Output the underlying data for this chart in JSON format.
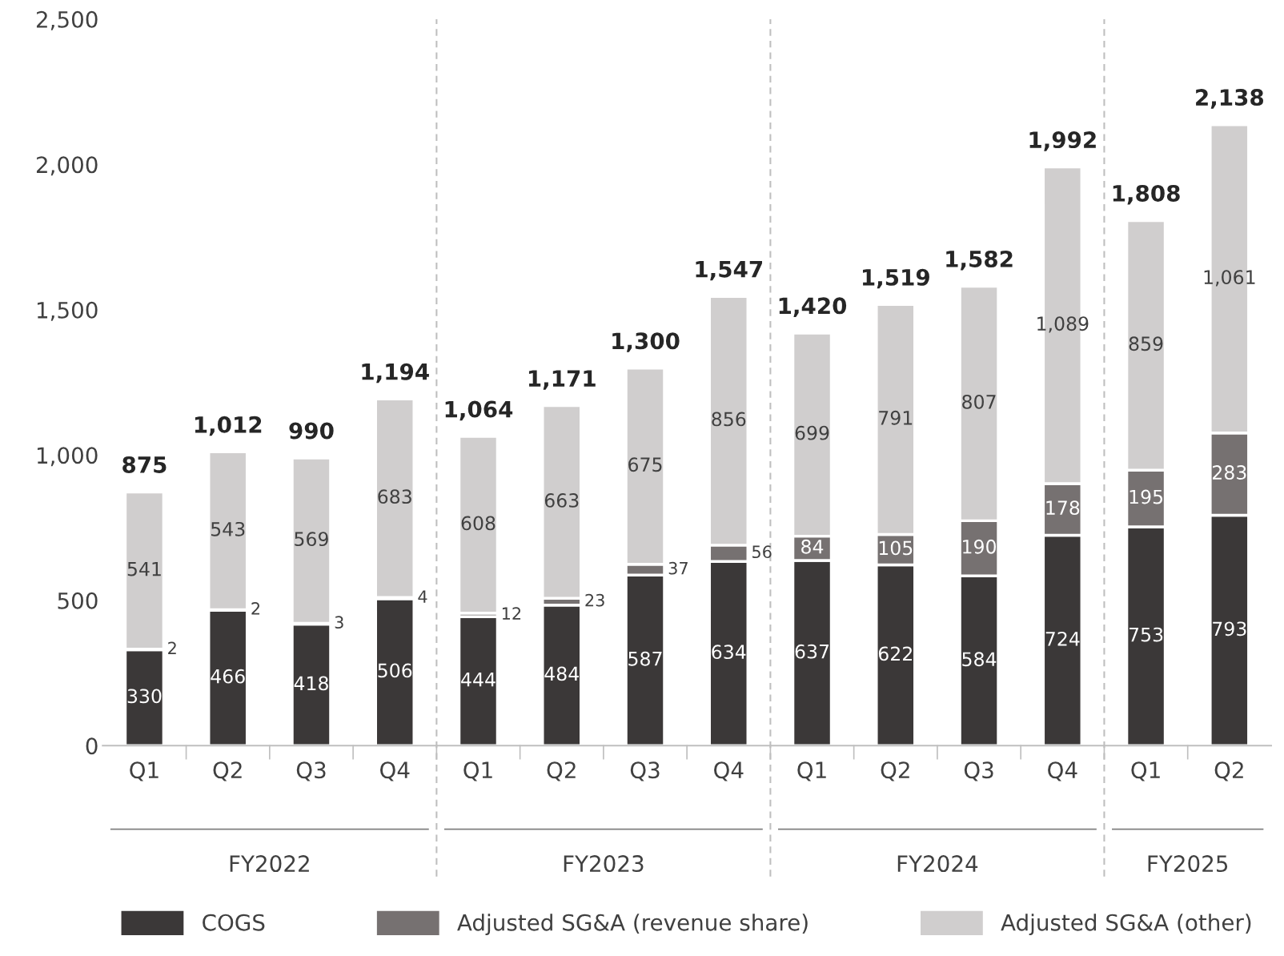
{
  "chart_data": {
    "type": "bar",
    "stacked": true,
    "categories": [
      "Q1",
      "Q2",
      "Q3",
      "Q4",
      "Q1",
      "Q2",
      "Q3",
      "Q4",
      "Q1",
      "Q2",
      "Q3",
      "Q4",
      "Q1",
      "Q2"
    ],
    "series": [
      {
        "name": "COGS",
        "color": "#3b3838",
        "values": [
          330,
          466,
          418,
          506,
          444,
          484,
          587,
          634,
          637,
          622,
          584,
          724,
          753,
          793
        ],
        "value_labels": [
          "330",
          "466",
          "418",
          "506",
          "444",
          "484",
          "587",
          "634",
          "637",
          "622",
          "584",
          "724",
          "753",
          "793"
        ]
      },
      {
        "name": "Adjusted SG&A (revenue share)",
        "color": "#767171",
        "values": [
          2,
          2,
          3,
          4,
          12,
          23,
          37,
          56,
          84,
          105,
          190,
          178,
          195,
          283
        ],
        "value_labels": [
          "2",
          "2",
          "3",
          "4",
          "12",
          "23",
          "37",
          "56",
          "84",
          "105",
          "190",
          "178",
          "195",
          "283"
        ]
      },
      {
        "name": "Adjusted SG&A (other)",
        "color": "#d0cece",
        "values": [
          541,
          543,
          569,
          683,
          608,
          663,
          675,
          856,
          699,
          791,
          807,
          1089,
          859,
          1061
        ],
        "value_labels": [
          "541",
          "543",
          "569",
          "683",
          "608",
          "663",
          "675",
          "856",
          "699",
          "791",
          "807",
          "1,089",
          "859",
          "1,061"
        ]
      }
    ],
    "totals": [
      "875",
      "1,012",
      "990",
      "1,194",
      "1,064",
      "1,171",
      "1,300",
      "1,547",
      "1,420",
      "1,519",
      "1,582",
      "1,992",
      "1,808",
      "2,138"
    ],
    "annotations": [
      "FY2022",
      "FY2023",
      "FY2024",
      "FY2025"
    ],
    "ylim": [
      0,
      2500
    ],
    "yticks": [
      0,
      500,
      {
        "value": 1000,
        "label": "1,000"
      },
      {
        "value": 1500,
        "label": "1,500"
      },
      {
        "value": 2000,
        "label": "2,000"
      },
      {
        "value": 2500,
        "label": "2,500"
      }
    ],
    "grid": false,
    "legend": "bottom"
  }
}
